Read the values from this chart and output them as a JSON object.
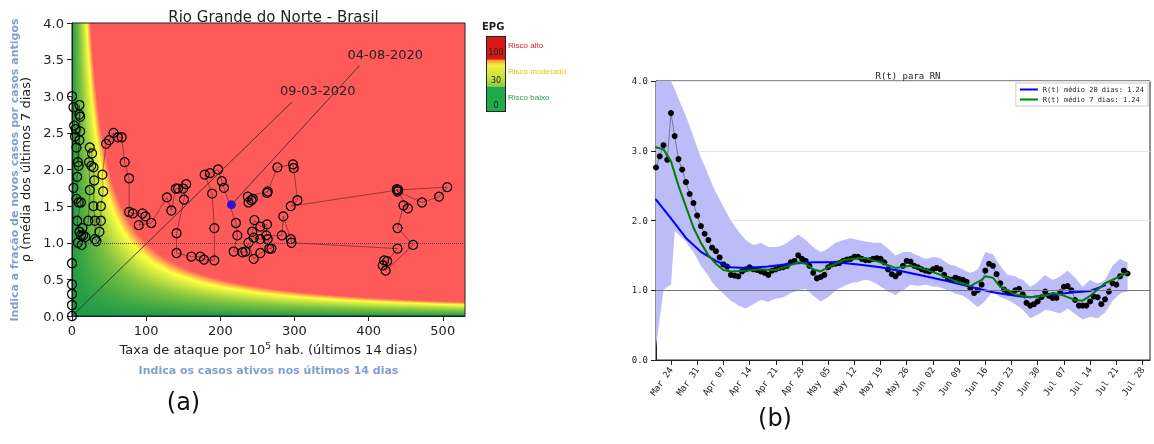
{
  "chart_data": [
    {
      "type": "scatter",
      "title": "Rio Grande do Norte - Brasil",
      "xlabel": "Taxa de ataque por 10$^{5}$ hab. (últimos 14 dias)",
      "ylabel": "ρ (média dos últimos 7 dias)",
      "clabel": "EPG",
      "xlim": [
        0,
        530
      ],
      "xticks": [
        0,
        100,
        200,
        300,
        400,
        500
      ],
      "ylim": [
        0,
        4
      ],
      "yticks": [
        {
          "value": 0,
          "label": "0.0"
        },
        {
          "value": 0.5,
          "label": "0.5"
        },
        {
          "value": 1,
          "label": "1.0"
        },
        {
          "value": 1.5,
          "label": "1.5"
        },
        {
          "value": 2,
          "label": "2.0"
        },
        {
          "value": 2.5,
          "label": "2.5"
        },
        {
          "value": 3,
          "label": "3.0"
        },
        {
          "value": 3.5,
          "label": "3.5"
        },
        {
          "value": 4,
          "label": "4.0"
        }
      ],
      "grid": false,
      "legend": false,
      "marker": "circle",
      "ref_lines": [
        {
          "axis": "y",
          "value": 1,
          "color": "#444444",
          "line_style": "dotted"
        }
      ],
      "annotations": [
        {
          "text": "09-03-2020",
          "x": 0,
          "y": 0
        },
        {
          "text": "04-08-2020",
          "x": 215,
          "y": 1.52
        },
        "Risco alto",
        "Risco moderado",
        "Risco baixo",
        "Indica a fração de novos casos por casos antigos",
        "Indica os casos ativos nos últimos 14 dias",
        "(a)",
        "100",
        "30",
        "0"
      ],
      "series": [
        {
          "type": "line",
          "color": "#000000",
          "line_style": "dotted",
          "x": [
            0,
            0,
            0,
            0,
            0,
            2,
            0,
            2,
            3,
            5,
            4,
            6,
            8,
            10,
            11,
            10,
            11,
            10,
            9,
            7,
            6,
            9,
            12,
            7,
            10,
            12,
            14,
            15,
            13,
            8,
            18,
            22,
            24,
            23,
            24,
            27,
            26,
            29,
            30,
            29,
            31,
            31,
            33,
            37,
            39,
            39,
            42,
            41,
            46,
            50,
            56,
            62,
            67,
            71,
            77,
            77,
            82,
            95,
            99,
            90,
            107,
            128,
            134,
            140,
            143,
            150,
            154,
            151,
            141,
            141,
            161,
            173,
            178,
            192,
            192,
            189,
            179,
            186,
            197,
            202,
            205,
            221,
            223,
            218,
            230,
            234,
            238,
            245,
            254,
            266,
            269,
            264,
            254,
            245,
            243,
            246,
            254,
            263,
            262,
            283,
            285,
            295,
            296,
            439,
            425,
            421,
            419,
            423,
            460,
            439,
            447,
            453,
            438,
            439,
            472,
            495,
            506,
            440,
            295,
            304,
            299,
            298,
            277,
            263,
            264,
            237,
            244,
            242,
            238
          ],
          "values": [
            0,
            0.15,
            0.3,
            0.43,
            0.72,
            1.75,
            3.0,
            2.85,
            2.6,
            2.55,
            2.45,
            2.3,
            2.1,
            2.4,
            2.52,
            2.75,
            2.72,
            2.88,
            2.05,
            1.9,
            1.6,
            1.55,
            1.55,
            1.3,
            1.15,
            1.1,
            1.2,
            1.1,
            0.97,
            1.0,
            1.08,
            1.3,
            1.72,
            2.1,
            2.3,
            2.22,
            2.05,
            2.03,
            1.85,
            1.5,
            1.3,
            1.05,
            1.02,
            1.15,
            1.3,
            1.5,
            1.7,
            1.93,
            2.35,
            2.4,
            2.5,
            2.44,
            2.44,
            2.1,
            1.88,
            1.42,
            1.4,
            1.4,
            1.36,
            1.24,
            1.27,
            1.62,
            1.44,
            1.74,
            1.74,
            1.74,
            1.8,
            1.59,
            1.13,
            0.86,
            0.81,
            0.81,
            0.77,
            0.76,
            1.2,
            1.67,
            1.93,
            1.95,
            2.0,
            1.84,
            1.75,
            1.27,
            1.1,
            0.88,
            0.87,
            0.88,
            1.0,
            0.78,
            0.86,
            0.92,
            0.92,
            1.05,
            1.05,
            1.07,
            1.15,
            1.31,
            1.22,
            1.25,
            1.1,
            1.1,
            1.36,
            1.05,
            1.0,
            0.92,
            0.75,
            0.76,
            0.69,
            0.62,
            0.97,
            1.2,
            1.51,
            1.47,
            1.73,
            1.7,
            1.55,
            1.63,
            1.76,
            1.72,
            1.5,
            1.58,
            2.02,
            2.07,
            2.03,
            1.68,
            1.7,
            1.63,
            1.6,
            1.58,
            1.55
          ]
        },
        {
          "type": "scatter",
          "color": "#0000ff",
          "x": [
            215
          ],
          "values": [
            1.52
          ]
        }
      ]
    },
    {
      "type": "line",
      "title": "R(t) para RN",
      "xlim": [
        "2020-03-20",
        "2020-07-30"
      ],
      "xticks": [
        {
          "value": "2020-03-24",
          "label": "Mar 24"
        },
        {
          "value": "2020-03-31",
          "label": "Mar 31"
        },
        {
          "value": "2020-04-07",
          "label": "Apr 07"
        },
        {
          "value": "2020-04-14",
          "label": "Apr 14"
        },
        {
          "value": "2020-04-21",
          "label": "Apr 21"
        },
        {
          "value": "2020-04-28",
          "label": "Apr 28"
        },
        {
          "value": "2020-05-05",
          "label": "May 05"
        },
        {
          "value": "2020-05-12",
          "label": "May 12"
        },
        {
          "value": "2020-05-19",
          "label": "May 19"
        },
        {
          "value": "2020-05-26",
          "label": "May 26"
        },
        {
          "value": "2020-06-02",
          "label": "Jun 02"
        },
        {
          "value": "2020-06-09",
          "label": "Jun 09"
        },
        {
          "value": "2020-06-16",
          "label": "Jun 16"
        },
        {
          "value": "2020-06-23",
          "label": "Jun 23"
        },
        {
          "value": "2020-06-30",
          "label": "Jun 30"
        },
        {
          "value": "2020-07-07",
          "label": "Jul 07"
        },
        {
          "value": "2020-07-14",
          "label": "Jul 14"
        },
        {
          "value": "2020-07-21",
          "label": "Jul 21"
        },
        {
          "value": "2020-07-28",
          "label": "Jul 28"
        }
      ],
      "ylim": [
        0,
        4
      ],
      "yticks": [
        {
          "value": 0,
          "label": "0.0"
        },
        {
          "value": 1,
          "label": "1.0"
        },
        {
          "value": 2,
          "label": "2.0"
        },
        {
          "value": 3,
          "label": "3.0"
        },
        {
          "value": 4,
          "label": "4.0"
        }
      ],
      "grid": "y",
      "legend": "top right",
      "ref_lines": [
        {
          "axis": "y",
          "value": 1,
          "color": "#777777"
        }
      ],
      "annotations": [
        "(b)"
      ],
      "series": [
        {
          "color": "#000000",
          "marker": "circle",
          "x": [
            "2020-03-20",
            "2020-03-21",
            "2020-03-22",
            "2020-03-23",
            "2020-03-24",
            "2020-03-25",
            "2020-03-26",
            "2020-03-27",
            "2020-03-28",
            "2020-03-29",
            "2020-03-30",
            "2020-03-31",
            "2020-04-01",
            "2020-04-02",
            "2020-04-03",
            "2020-04-04",
            "2020-04-05",
            "2020-04-06",
            "2020-04-07",
            "2020-04-08",
            "2020-04-09",
            "2020-04-10",
            "2020-04-11",
            "2020-04-12",
            "2020-04-13",
            "2020-04-14",
            "2020-04-15",
            "2020-04-16",
            "2020-04-17",
            "2020-04-18",
            "2020-04-19",
            "2020-04-20",
            "2020-04-21",
            "2020-04-22",
            "2020-04-23",
            "2020-04-24",
            "2020-04-25",
            "2020-04-26",
            "2020-04-27",
            "2020-04-28",
            "2020-04-29",
            "2020-04-30",
            "2020-05-01",
            "2020-05-02",
            "2020-05-03",
            "2020-05-04",
            "2020-05-05",
            "2020-05-06",
            "2020-05-07",
            "2020-05-08",
            "2020-05-09",
            "2020-05-10",
            "2020-05-11",
            "2020-05-12",
            "2020-05-13",
            "2020-05-14",
            "2020-05-15",
            "2020-05-16",
            "2020-05-17",
            "2020-05-18",
            "2020-05-19",
            "2020-05-20",
            "2020-05-21",
            "2020-05-22",
            "2020-05-23",
            "2020-05-24",
            "2020-05-25",
            "2020-05-26",
            "2020-05-27",
            "2020-05-28",
            "2020-05-29",
            "2020-05-30",
            "2020-05-31",
            "2020-06-01",
            "2020-06-02",
            "2020-06-03",
            "2020-06-04",
            "2020-06-05",
            "2020-06-06",
            "2020-06-07",
            "2020-06-08",
            "2020-06-09",
            "2020-06-10",
            "2020-06-11",
            "2020-06-12",
            "2020-06-13",
            "2020-06-14",
            "2020-06-15",
            "2020-06-16",
            "2020-06-17",
            "2020-06-18",
            "2020-06-19",
            "2020-06-20",
            "2020-06-21",
            "2020-06-22",
            "2020-06-23",
            "2020-06-24",
            "2020-06-25",
            "2020-06-26",
            "2020-06-27",
            "2020-06-28",
            "2020-06-29",
            "2020-06-30",
            "2020-07-01",
            "2020-07-02",
            "2020-07-03",
            "2020-07-04",
            "2020-07-05",
            "2020-07-06",
            "2020-07-07",
            "2020-07-08",
            "2020-07-09",
            "2020-07-10",
            "2020-07-11",
            "2020-07-12",
            "2020-07-13",
            "2020-07-14",
            "2020-07-15",
            "2020-07-16",
            "2020-07-17",
            "2020-07-18",
            "2020-07-19",
            "2020-07-20",
            "2020-07-21",
            "2020-07-22",
            "2020-07-23",
            "2020-07-24"
          ],
          "values": [
            2.76,
            2.92,
            3.08,
            2.87,
            3.54,
            3.21,
            2.88,
            2.73,
            2.55,
            2.38,
            2.25,
            2.07,
            1.92,
            1.81,
            1.72,
            1.61,
            1.56,
            1.47,
            1.37,
            1.34,
            1.22,
            1.21,
            1.2,
            1.27,
            1.3,
            1.33,
            1.3,
            1.29,
            1.27,
            1.25,
            1.22,
            1.28,
            1.3,
            1.32,
            1.33,
            1.35,
            1.4,
            1.42,
            1.5,
            1.45,
            1.42,
            1.35,
            1.25,
            1.17,
            1.19,
            1.22,
            1.33,
            1.37,
            1.38,
            1.39,
            1.42,
            1.44,
            1.45,
            1.48,
            1.48,
            1.45,
            1.43,
            1.43,
            1.45,
            1.46,
            1.45,
            1.4,
            1.3,
            1.23,
            1.2,
            1.25,
            1.35,
            1.42,
            1.41,
            1.35,
            1.33,
            1.3,
            1.28,
            1.27,
            1.3,
            1.32,
            1.3,
            1.22,
            1.16,
            1.15,
            1.18,
            1.16,
            1.15,
            1.12,
            1.03,
            0.96,
            1.0,
            1.08,
            1.28,
            1.38,
            1.35,
            1.23,
            1.1,
            1.01,
            0.97,
            0.96,
            1.0,
            1.02,
            0.94,
            0.82,
            0.78,
            0.8,
            0.84,
            0.9,
            0.98,
            0.92,
            0.89,
            0.89,
            0.97,
            1.05,
            1.06,
            1.0,
            0.86,
            0.78,
            0.78,
            0.78,
            0.84,
            0.91,
            0.9,
            0.8,
            0.87,
            0.98,
            1.1,
            1.08,
            1.2,
            1.28,
            1.24
          ],
          "upper": [
            4.0,
            4.0,
            4.0,
            4.0,
            4.0,
            3.88,
            3.75,
            3.62,
            3.5,
            3.35,
            3.2,
            3.05,
            2.9,
            2.78,
            2.65,
            2.52,
            2.4,
            2.3,
            2.2,
            2.1,
            2.0,
            1.92,
            1.85,
            1.78,
            1.72,
            1.68,
            1.65,
            1.66,
            1.68,
            1.65,
            1.62,
            1.62,
            1.62,
            1.63,
            1.65,
            1.68,
            1.72,
            1.76,
            1.8,
            1.76,
            1.72,
            1.67,
            1.62,
            1.58,
            1.55,
            1.57,
            1.6,
            1.64,
            1.68,
            1.7,
            1.72,
            1.73,
            1.75,
            1.73,
            1.72,
            1.71,
            1.7,
            1.69,
            1.68,
            1.68,
            1.68,
            1.64,
            1.6,
            1.55,
            1.5,
            1.52,
            1.55,
            1.55,
            1.55,
            1.52,
            1.5,
            1.47,
            1.45,
            1.46,
            1.48,
            1.47,
            1.46,
            1.42,
            1.38,
            1.36,
            1.35,
            1.32,
            1.3,
            1.27,
            1.25,
            1.27,
            1.3,
            1.42,
            1.55,
            1.53,
            1.52,
            1.43,
            1.35,
            1.28,
            1.22,
            1.21,
            1.2,
            1.17,
            1.15,
            1.1,
            1.05,
            1.08,
            1.12,
            1.17,
            1.22,
            1.18,
            1.15,
            1.17,
            1.2,
            1.24,
            1.28,
            1.23,
            1.18,
            1.11,
            1.05,
            1.1,
            1.15,
            1.12,
            1.1,
            1.12,
            1.15,
            1.25,
            1.35,
            1.4,
            1.45,
            1.42,
            1.4
          ],
          "lower": [
            0.2,
            0.6,
            1.0,
            1.05,
            1.08,
            1.85,
            1.8,
            1.75,
            1.7,
            1.62,
            1.55,
            1.45,
            1.35,
            1.28,
            1.2,
            1.12,
            1.05,
            1.0,
            0.95,
            0.9,
            0.85,
            0.82,
            0.78,
            0.76,
            0.74,
            0.77,
            0.8,
            0.83,
            0.86,
            0.85,
            0.83,
            0.86,
            0.88,
            0.89,
            0.9,
            0.93,
            0.96,
            0.98,
            1.0,
            1.01,
            1.02,
            0.97,
            0.92,
            0.88,
            0.84,
            0.87,
            0.9,
            0.95,
            1.0,
            1.03,
            1.05,
            1.08,
            1.1,
            1.11,
            1.12,
            1.14,
            1.15,
            1.14,
            1.12,
            1.09,
            1.05,
            1.02,
            0.98,
            0.96,
            0.93,
            0.97,
            1.0,
            1.04,
            1.08,
            1.07,
            1.06,
            1.07,
            1.08,
            1.07,
            1.05,
            1.05,
            1.04,
            1.02,
            1.0,
            0.98,
            0.95,
            0.94,
            0.92,
            0.89,
            0.85,
            0.8,
            0.76,
            0.8,
            0.85,
            0.92,
            0.98,
            0.94,
            0.9,
            0.88,
            0.86,
            0.83,
            0.8,
            0.76,
            0.72,
            0.66,
            0.6,
            0.62,
            0.65,
            0.68,
            0.72,
            0.71,
            0.7,
            0.68,
            0.67,
            0.7,
            0.74,
            0.7,
            0.66,
            0.62,
            0.58,
            0.6,
            0.62,
            0.61,
            0.6,
            0.64,
            0.68,
            0.76,
            0.85,
            0.9,
            0.95,
            0.97,
            0.98
          ]
        },
        {
          "name": "R(t) médio 20 dias: 1.24",
          "color": "#0000ff",
          "marker": "none",
          "x": [
            "2020-03-20",
            "2020-03-24",
            "2020-03-28",
            "2020-04-01",
            "2020-04-05",
            "2020-04-09",
            "2020-04-13",
            "2020-04-19",
            "2020-04-25",
            "2020-05-01",
            "2020-05-07",
            "2020-05-13",
            "2020-05-19",
            "2020-05-25",
            "2020-05-31",
            "2020-06-06",
            "2020-06-12",
            "2020-06-18",
            "2020-06-24",
            "2020-06-28",
            "2020-07-04",
            "2020-07-10",
            "2020-07-14",
            "2020-07-18"
          ],
          "values": [
            2.3,
            2.03,
            1.75,
            1.55,
            1.42,
            1.33,
            1.32,
            1.34,
            1.38,
            1.4,
            1.4,
            1.37,
            1.33,
            1.27,
            1.2,
            1.13,
            1.05,
            0.97,
            0.92,
            0.9,
            0.94,
            0.97,
            0.99,
            1.07
          ]
        },
        {
          "name": "R(t) médio 7 dias: 1.24",
          "color": "#008000",
          "marker": "none",
          "x": [
            "2020-03-20",
            "2020-03-22",
            "2020-03-24",
            "2020-03-26",
            "2020-03-28",
            "2020-03-30",
            "2020-04-01",
            "2020-04-03",
            "2020-04-05",
            "2020-04-07",
            "2020-04-09",
            "2020-04-13",
            "2020-04-17",
            "2020-04-21",
            "2020-04-25",
            "2020-04-27",
            "2020-04-29",
            "2020-05-01",
            "2020-05-03",
            "2020-05-05",
            "2020-05-09",
            "2020-05-13",
            "2020-05-15",
            "2020-05-19",
            "2020-05-23",
            "2020-05-27",
            "2020-05-31",
            "2020-06-04",
            "2020-06-08",
            "2020-06-12",
            "2020-06-15",
            "2020-06-16",
            "2020-06-18",
            "2020-06-20",
            "2020-06-24",
            "2020-06-28",
            "2020-07-02",
            "2020-07-04",
            "2020-07-06",
            "2020-07-10",
            "2020-07-12",
            "2020-07-14",
            "2020-07-18",
            "2020-07-22",
            "2020-07-24"
          ],
          "values": [
            3.05,
            3.02,
            2.85,
            2.5,
            2.2,
            1.9,
            1.68,
            1.5,
            1.38,
            1.29,
            1.27,
            1.28,
            1.3,
            1.29,
            1.36,
            1.4,
            1.38,
            1.3,
            1.27,
            1.33,
            1.43,
            1.46,
            1.46,
            1.4,
            1.32,
            1.35,
            1.3,
            1.22,
            1.13,
            1.06,
            1.15,
            1.2,
            1.18,
            1.05,
            0.94,
            0.9,
            0.92,
            0.96,
            0.94,
            0.86,
            0.85,
            0.92,
            1.1,
            1.2,
            1.25
          ]
        }
      ]
    }
  ]
}
